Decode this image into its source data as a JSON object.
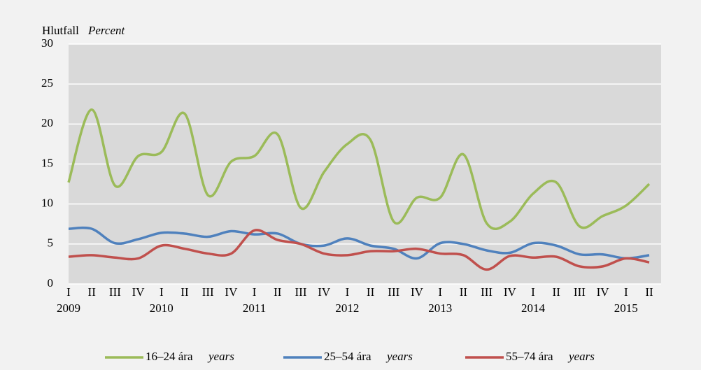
{
  "chart_data": {
    "type": "line",
    "y_label": "Hlutfall",
    "y_label_en": "Percent",
    "categories": [
      "I",
      "II",
      "III",
      "IV",
      "I",
      "II",
      "III",
      "IV",
      "I",
      "II",
      "III",
      "IV",
      "I",
      "II",
      "III",
      "IV",
      "I",
      "II",
      "III",
      "IV",
      "I",
      "II",
      "III",
      "IV",
      "I",
      "II"
    ],
    "years": [
      "2009",
      "2010",
      "2011",
      "2012",
      "2013",
      "2014",
      "2015"
    ],
    "series": [
      {
        "name": "16–24 ára",
        "name_en": "years",
        "color": "#9bbb59",
        "values": [
          12.7,
          21.8,
          12.3,
          16.0,
          16.5,
          21.3,
          11.1,
          15.3,
          16.0,
          18.7,
          9.5,
          14.0,
          17.5,
          18.0,
          7.8,
          10.8,
          10.8,
          16.2,
          7.6,
          7.8,
          11.3,
          12.7,
          7.2,
          8.5,
          9.8,
          12.5
        ]
      },
      {
        "name": "25–54 ára",
        "name_en": "years",
        "color": "#4f81bd",
        "values": [
          6.9,
          6.9,
          5.1,
          5.6,
          6.4,
          6.3,
          5.9,
          6.6,
          6.2,
          6.3,
          5.0,
          4.8,
          5.7,
          4.8,
          4.4,
          3.2,
          5.1,
          5.0,
          4.2,
          3.9,
          5.1,
          4.8,
          3.7,
          3.7,
          3.2,
          3.6
        ]
      },
      {
        "name": "55–74 ára",
        "name_en": "years",
        "color": "#c0504d",
        "values": [
          3.4,
          3.6,
          3.3,
          3.2,
          4.8,
          4.4,
          3.8,
          3.8,
          6.7,
          5.5,
          5.0,
          3.8,
          3.6,
          4.1,
          4.1,
          4.4,
          3.8,
          3.6,
          1.8,
          3.5,
          3.3,
          3.4,
          2.2,
          2.2,
          3.2,
          2.7
        ]
      }
    ],
    "ylim": [
      0,
      30
    ],
    "yticks": [
      0,
      5,
      10,
      15,
      20,
      25,
      30
    ],
    "grid": true
  }
}
